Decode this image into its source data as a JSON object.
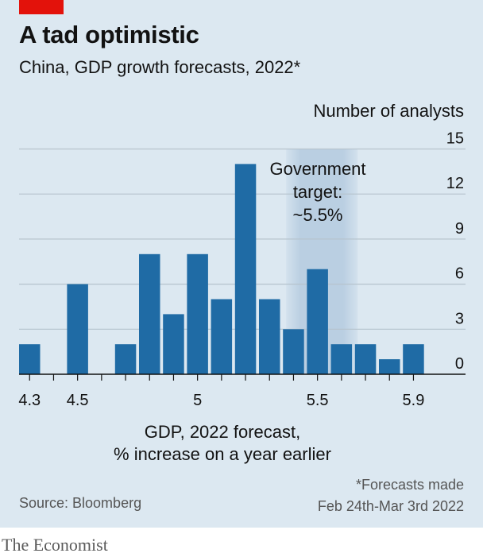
{
  "header": {
    "title": "A tad optimistic",
    "subtitle": "China, GDP growth forecasts, 2022*"
  },
  "footer": {
    "footnote_line1": "*Forecasts made",
    "footnote_line2": "Feb 24th-Mar 3rd 2022",
    "source": "Source: Bloomberg",
    "brand": "The Economist"
  },
  "colors": {
    "bar": "#1f6ba5",
    "band": "#9fbbd6",
    "grid": "#b6c3cd",
    "background": "#dce8f1",
    "accent_red": "#e3120b"
  },
  "chart_data": {
    "type": "bar",
    "ylabel": "Number of analysts",
    "xlabel_line1": "GDP, 2022 forecast,",
    "xlabel_line2": "% increase on a year earlier",
    "x": [
      4.3,
      4.4,
      4.5,
      4.6,
      4.7,
      4.8,
      4.9,
      5.0,
      5.1,
      5.2,
      5.3,
      5.4,
      5.5,
      5.6,
      5.7,
      5.8,
      5.9
    ],
    "values": [
      2,
      0,
      6,
      0,
      2,
      8,
      4,
      8,
      5,
      14,
      5,
      3,
      7,
      2,
      2,
      1,
      2
    ],
    "ylim": [
      0,
      15
    ],
    "yticks": [
      0,
      3,
      6,
      9,
      12,
      15
    ],
    "xticks": [
      4.3,
      4.5,
      5,
      5.5,
      5.9
    ],
    "xtick_labels": [
      "4.3",
      "4.5",
      "5",
      "5.5",
      "5.9"
    ],
    "grid": true,
    "annotation": {
      "text_line1": "Government",
      "text_line2": "target:",
      "text_line3": "~5.5%",
      "x_from": 5.4,
      "x_to": 5.65
    }
  }
}
